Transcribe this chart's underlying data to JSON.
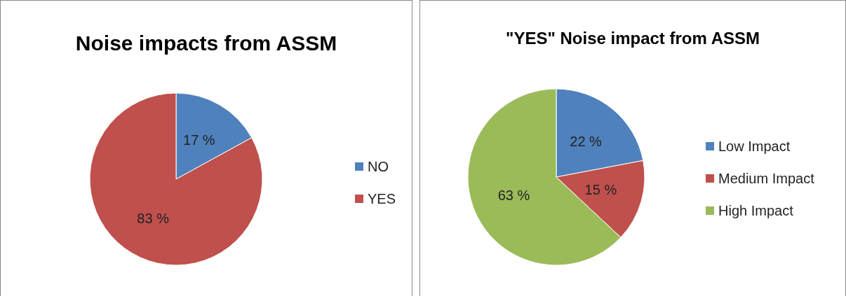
{
  "chart_data": [
    {
      "type": "pie",
      "title": "Noise impacts from ASSM",
      "categories": [
        "NO",
        "YES"
      ],
      "values": [
        17,
        83
      ],
      "colors": [
        "#4f81bd",
        "#c0504d"
      ],
      "value_labels": [
        "17 %",
        "83 %"
      ],
      "legend": "right"
    },
    {
      "type": "pie",
      "title": "\"YES\" Noise impact from ASSM",
      "categories": [
        "Low Impact",
        "Medium Impact",
        "High Impact"
      ],
      "values": [
        22,
        15,
        63
      ],
      "colors": [
        "#4f81bd",
        "#c0504d",
        "#9bbb59"
      ],
      "value_labels": [
        "22 %",
        "15 %",
        "63 %"
      ],
      "legend": "right"
    }
  ]
}
